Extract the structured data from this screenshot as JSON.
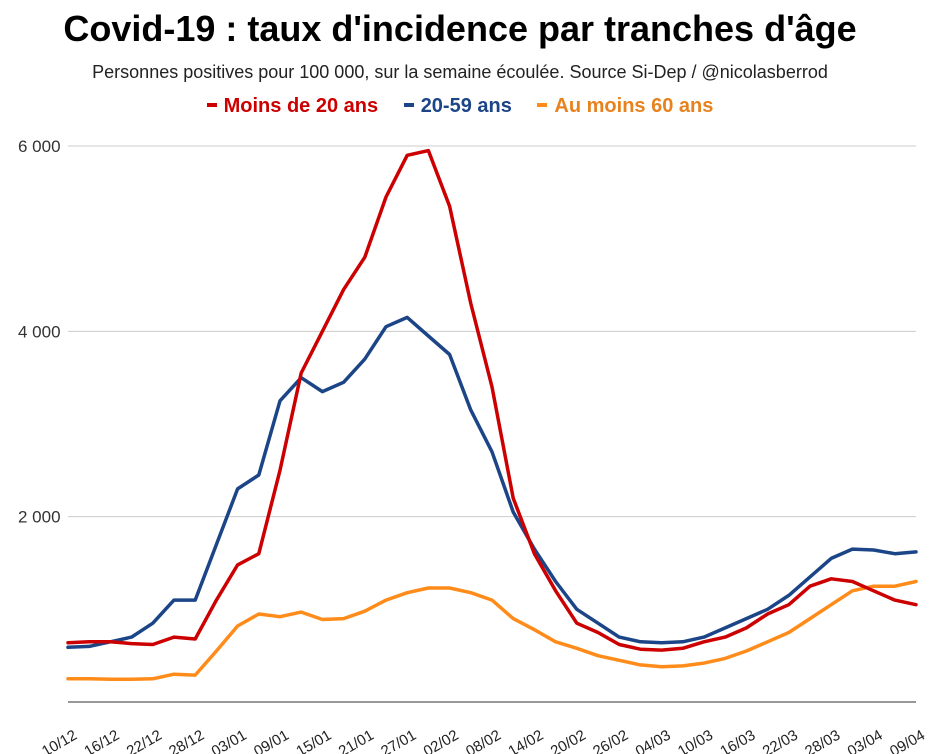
{
  "title": "Covid-19 : taux d'incidence par tranches d'âge",
  "subtitle": "Personnes positives pour 100 000, sur la semaine écoulée. Source Si-Dep / @nicolasberrod",
  "chart_data": {
    "type": "line",
    "title": "Covid-19 : taux d'incidence par tranches d'âge",
    "subtitle": "Personnes positives pour 100 000, sur la semaine écoulée. Source Si-Dep / @nicolasberrod",
    "xlabel": "",
    "ylabel": "",
    "ylim": [
      0,
      6000
    ],
    "yticks": [
      2000,
      4000,
      6000
    ],
    "ytick_labels": [
      "2 000",
      "4 000",
      "6 000"
    ],
    "grid": "horizontal",
    "legend_position": "top",
    "x_tick_labels": [
      "10/12",
      "16/12",
      "22/12",
      "28/12",
      "03/01",
      "09/01",
      "15/01",
      "21/01",
      "27/01",
      "02/02",
      "08/02",
      "14/02",
      "20/02",
      "26/02",
      "04/03",
      "10/03",
      "16/03",
      "22/03",
      "28/03",
      "03/04",
      "09/04"
    ],
    "x": [
      "10/12",
      "13/12",
      "16/12",
      "19/12",
      "22/12",
      "25/12",
      "28/12",
      "31/12",
      "03/01",
      "06/01",
      "09/01",
      "12/01",
      "15/01",
      "18/01",
      "21/01",
      "24/01",
      "27/01",
      "30/01",
      "02/02",
      "05/02",
      "08/02",
      "11/02",
      "14/02",
      "17/02",
      "20/02",
      "23/02",
      "26/02",
      "01/03",
      "04/03",
      "07/03",
      "10/03",
      "13/03",
      "16/03",
      "19/03",
      "22/03",
      "25/03",
      "28/03",
      "31/03",
      "03/04",
      "06/04",
      "09/04"
    ],
    "series": [
      {
        "name": "Moins de 20 ans",
        "color": "#cc0000",
        "values": [
          640,
          650,
          650,
          630,
          620,
          700,
          680,
          1100,
          1480,
          1600,
          2500,
          3550,
          4000,
          4450,
          4800,
          5450,
          5900,
          5950,
          5350,
          4300,
          3400,
          2200,
          1600,
          1200,
          850,
          750,
          620,
          570,
          560,
          580,
          650,
          700,
          800,
          950,
          1050,
          1250,
          1330,
          1300,
          1200,
          1100,
          1050
        ]
      },
      {
        "name": "20-59 ans",
        "color": "#1c4587",
        "values": [
          590,
          600,
          650,
          700,
          850,
          1100,
          1100,
          1700,
          2300,
          2450,
          3250,
          3500,
          3350,
          3450,
          3700,
          4050,
          4150,
          3950,
          3750,
          3150,
          2700,
          2050,
          1650,
          1300,
          1000,
          850,
          700,
          650,
          640,
          650,
          700,
          800,
          900,
          1000,
          1150,
          1350,
          1550,
          1650,
          1640,
          1600,
          1620
        ]
      },
      {
        "name": "Au moins 60 ans",
        "color": "#ff8c1a",
        "values": [
          250,
          250,
          245,
          245,
          250,
          300,
          290,
          550,
          820,
          950,
          920,
          970,
          890,
          900,
          980,
          1100,
          1180,
          1230,
          1230,
          1180,
          1100,
          900,
          780,
          650,
          580,
          500,
          450,
          400,
          380,
          390,
          420,
          470,
          550,
          650,
          750,
          900,
          1050,
          1200,
          1250,
          1250,
          1300
        ]
      }
    ]
  }
}
